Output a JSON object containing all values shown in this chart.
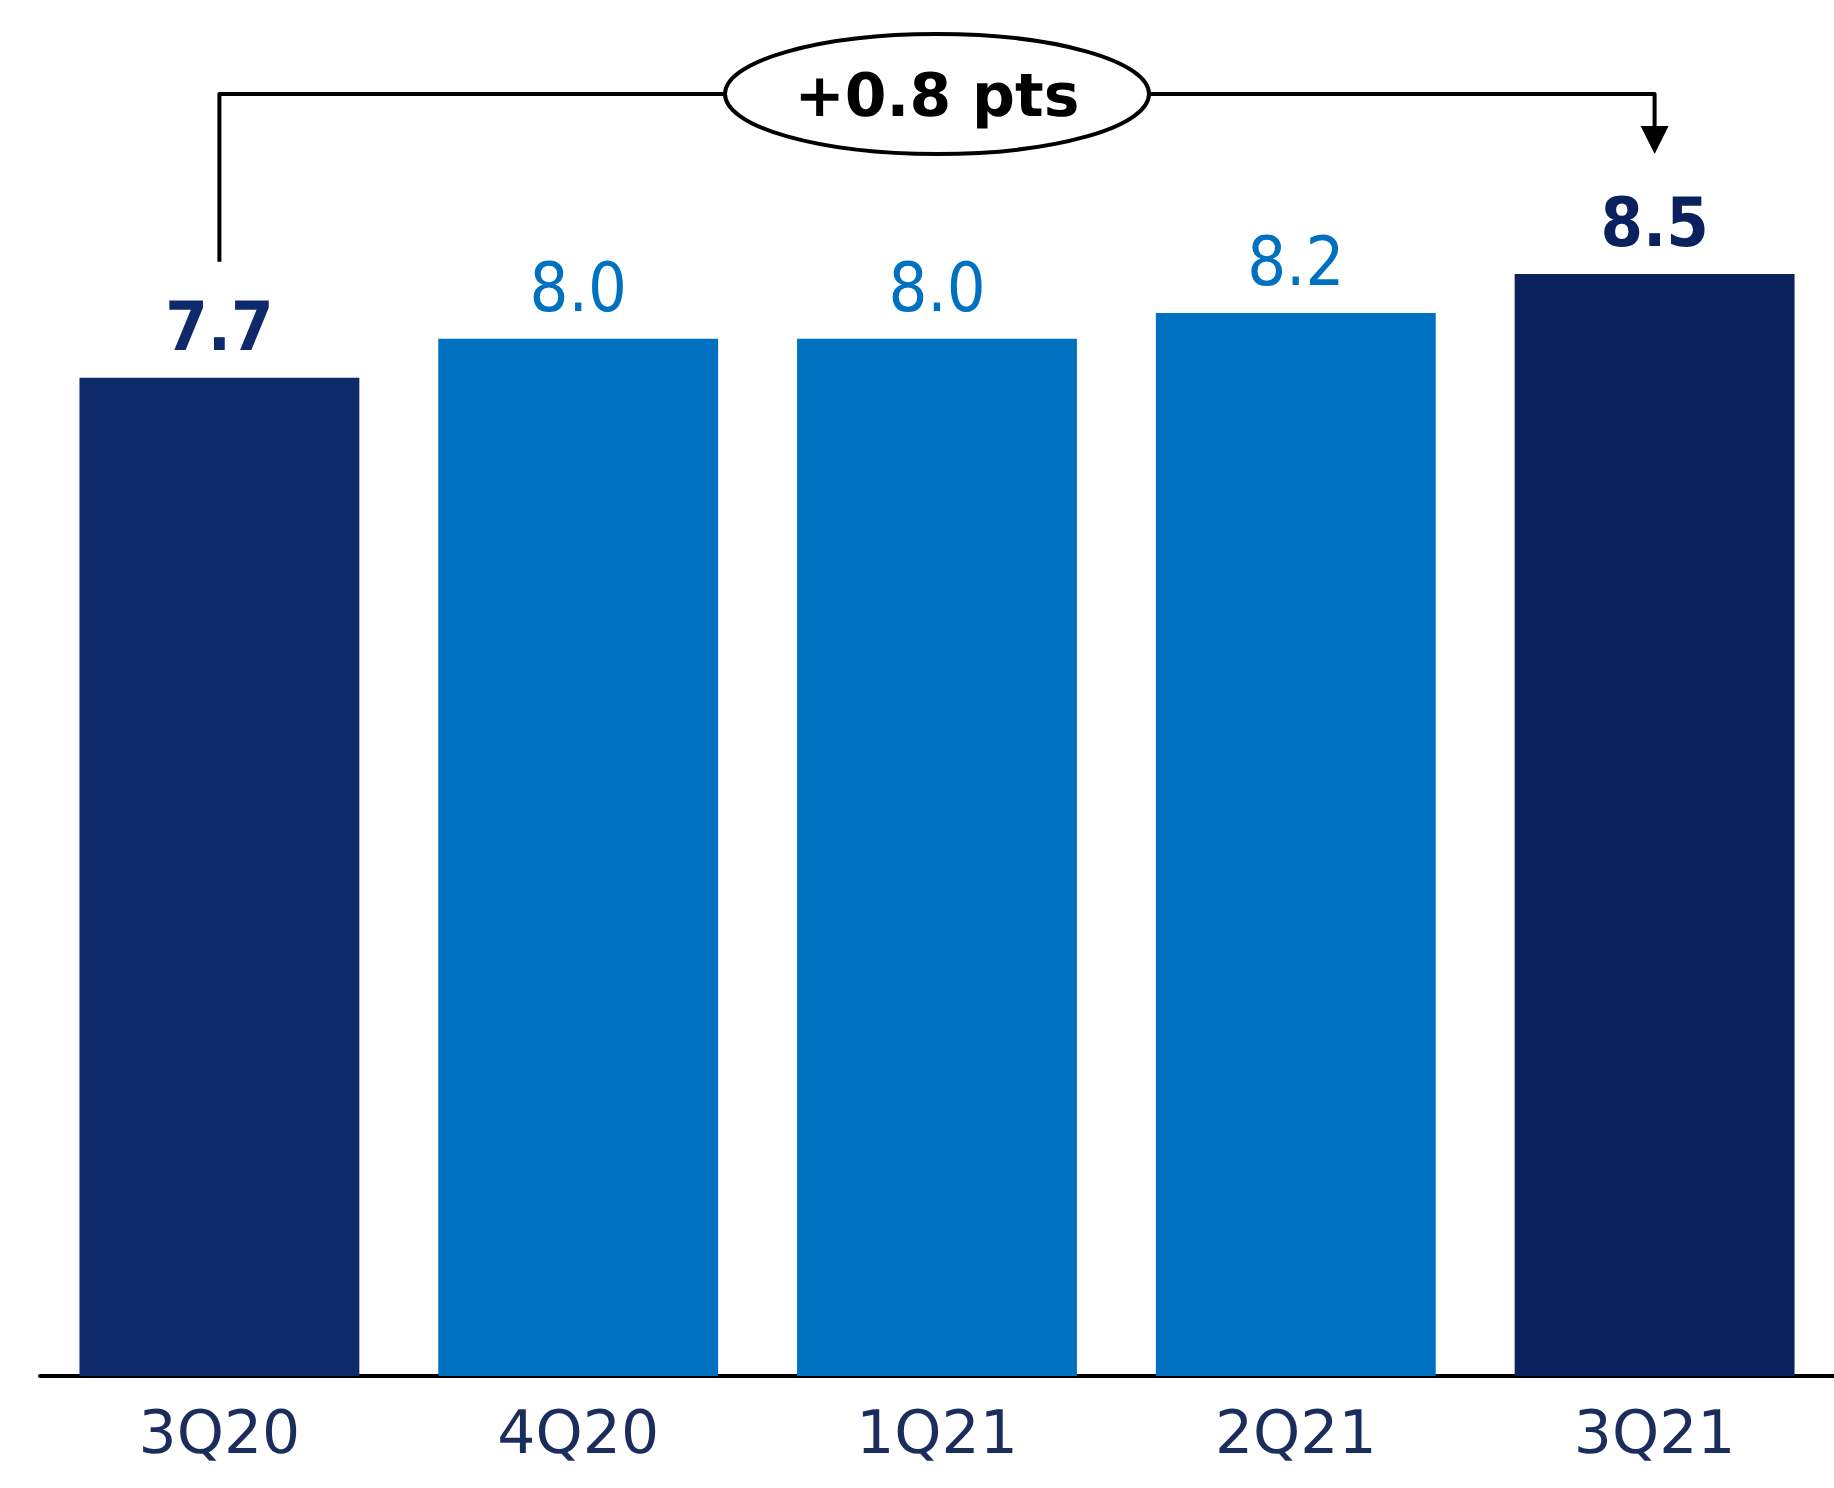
{
  "chart_data": {
    "type": "bar",
    "categories": [
      "3Q20",
      "4Q20",
      "1Q21",
      "2Q21",
      "3Q21"
    ],
    "values": [
      7.7,
      8.0,
      8.0,
      8.2,
      8.5
    ],
    "value_labels": [
      "7.7",
      "8.0",
      "8.0",
      "8.2",
      "8.5"
    ],
    "colors": [
      "#0f2a6b",
      "#0070c0",
      "#0070c0",
      "#0070c0",
      "#0b215e"
    ],
    "annotations": [
      "+0.8 pts"
    ]
  }
}
